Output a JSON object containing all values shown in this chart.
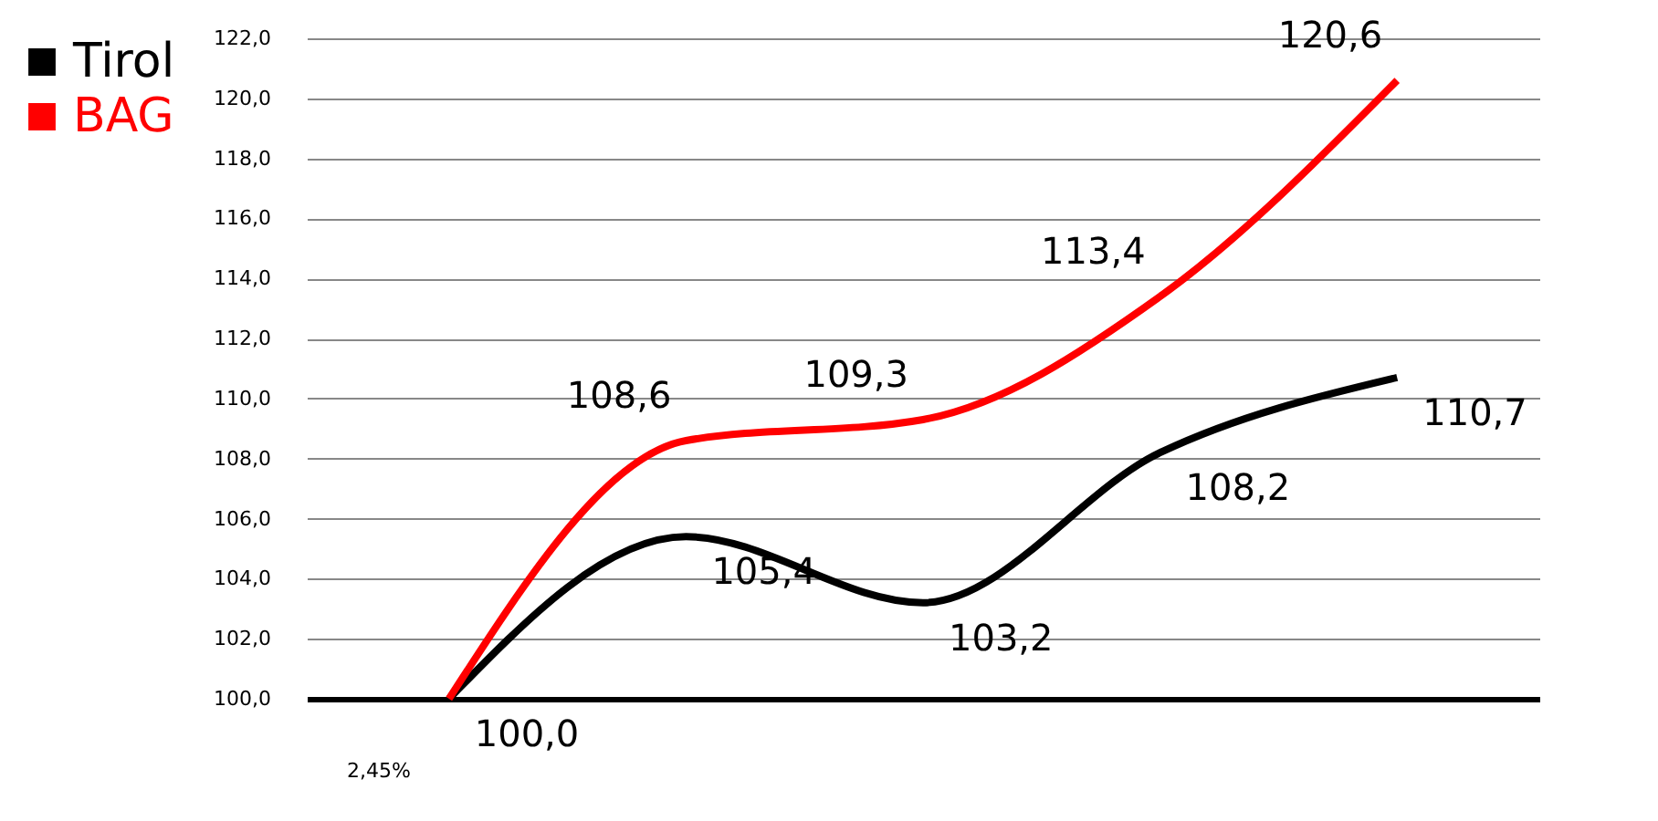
{
  "chart_data": {
    "type": "line",
    "categories": [
      null,
      null,
      null,
      null,
      null
    ],
    "series": [
      {
        "name": "Tirol",
        "color": "#000000",
        "values": [
          100.0,
          105.4,
          103.2,
          108.2,
          110.7
        ],
        "value_labels": [
          "100,0",
          "105,4",
          "103,2",
          "108,2",
          "110,7"
        ]
      },
      {
        "name": "BAG",
        "color": "#ff0000",
        "values": [
          100.0,
          108.6,
          109.3,
          113.4,
          120.6
        ],
        "value_labels": [
          null,
          "108,6",
          "109,3",
          "113,4",
          "120,6"
        ]
      }
    ],
    "ylim": [
      100,
      122
    ],
    "yticks": [
      {
        "value": 100,
        "label": "100,0"
      },
      {
        "value": 102,
        "label": "102,0"
      },
      {
        "value": 104,
        "label": "104,0"
      },
      {
        "value": 106,
        "label": "106,0"
      },
      {
        "value": 108,
        "label": "108,0"
      },
      {
        "value": 110,
        "label": "110,0"
      },
      {
        "value": 112,
        "label": "112,0"
      },
      {
        "value": 114,
        "label": "114,0"
      },
      {
        "value": 116,
        "label": "116,0"
      },
      {
        "value": 118,
        "label": "118,0"
      },
      {
        "value": 120,
        "label": "120,0"
      },
      {
        "value": 122,
        "label": "122,0"
      }
    ],
    "grid": "y",
    "legend": "left",
    "tick_labels": "y",
    "marker": "none",
    "line_style": "solid",
    "annotations": [
      "2,45%"
    ]
  }
}
